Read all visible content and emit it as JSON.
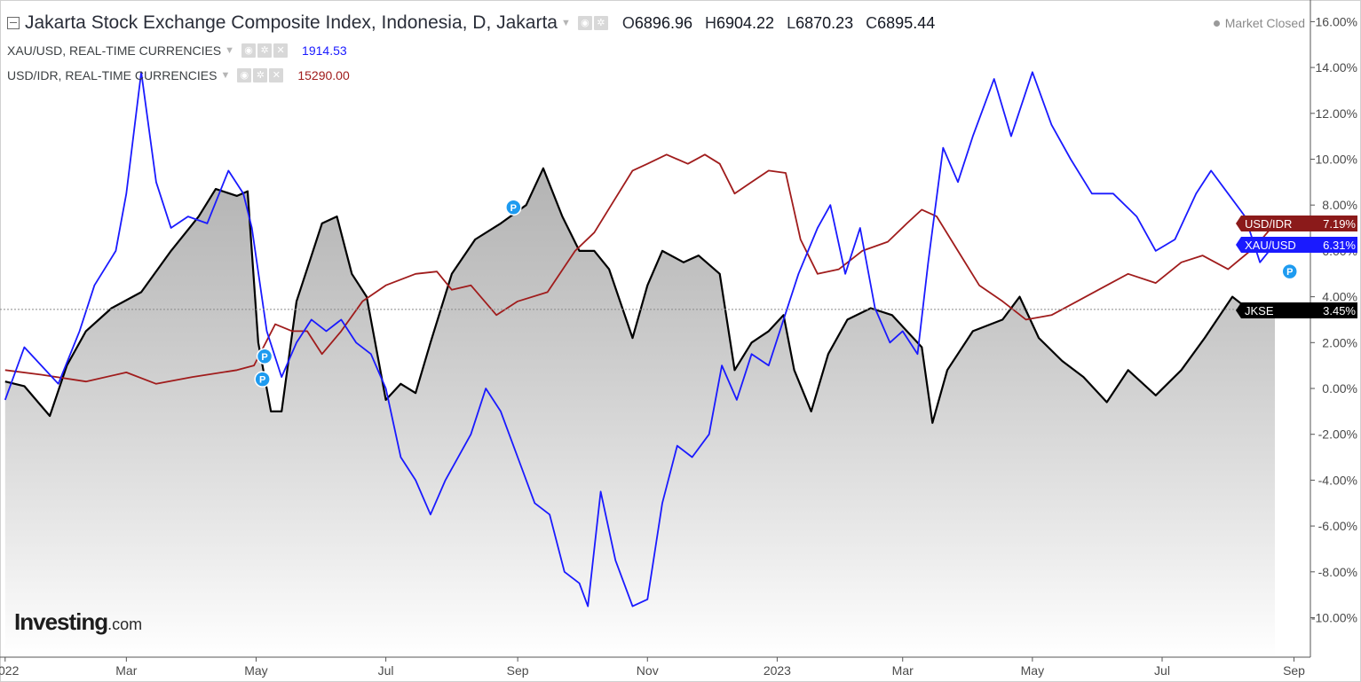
{
  "header": {
    "title": "Jakarta Stock Exchange Composite Index, Indonesia, D, Jakarta",
    "open_key": "O",
    "open": "6896.96",
    "high_key": "H",
    "high": "6904.22",
    "low_key": "L",
    "low": "6870.23",
    "close_key": "C",
    "close": "6895.44",
    "market_status": "Market Closed",
    "overlays": [
      {
        "name": "XAU/USD, REAL-TIME CURRENCIES",
        "value": "1914.53",
        "color": "#1a1aff"
      },
      {
        "name": "USD/IDR, REAL-TIME CURRENCIES",
        "value": "15290.00",
        "color": "#a01c1c"
      }
    ]
  },
  "logo": {
    "brand": "Investing",
    "suffix": ".com"
  },
  "chart_data": {
    "type": "line",
    "y_unit": "% change",
    "ylim": [
      -11.5,
      16.5
    ],
    "y_ticks": [
      "16.00%",
      "14.00%",
      "12.00%",
      "10.00%",
      "8.00%",
      "6.00%",
      "4.00%",
      "2.00%",
      "0.00%",
      "-2.00%",
      "-4.00%",
      "-6.00%",
      "-8.00%",
      "-10.00%"
    ],
    "y_tick_values": [
      16,
      14,
      12,
      10,
      8,
      6,
      4,
      2,
      0,
      -2,
      -4,
      -6,
      -8,
      -10
    ],
    "x_range": [
      "2022-01-01",
      "2023-09-30"
    ],
    "x_ticks": [
      "2022",
      "Mar",
      "May",
      "Jul",
      "Sep",
      "Nov",
      "2023",
      "Mar",
      "May",
      "Jul",
      "Sep"
    ],
    "x_tick_dates": [
      "2022-01-03",
      "2022-03-01",
      "2022-05-01",
      "2022-07-01",
      "2022-09-01",
      "2022-11-01",
      "2023-01-01",
      "2023-03-01",
      "2023-05-01",
      "2023-07-01",
      "2023-09-01"
    ],
    "grid": false,
    "reference_line": 3.45,
    "series": [
      {
        "name": "JKSE",
        "color": "#000000",
        "fill": true,
        "last_label": "3.45%",
        "label_bg": "#000000",
        "points": [
          [
            "2022-01-03",
            0.3
          ],
          [
            "2022-01-12",
            0.1
          ],
          [
            "2022-01-24",
            -1.2
          ],
          [
            "2022-02-01",
            1.0
          ],
          [
            "2022-02-10",
            2.5
          ],
          [
            "2022-02-22",
            3.5
          ],
          [
            "2022-03-08",
            4.2
          ],
          [
            "2022-03-22",
            6.0
          ],
          [
            "2022-04-04",
            7.5
          ],
          [
            "2022-04-12",
            8.7
          ],
          [
            "2022-04-22",
            8.4
          ],
          [
            "2022-04-27",
            8.6
          ],
          [
            "2022-05-02",
            2.0
          ],
          [
            "2022-05-08",
            -1.0
          ],
          [
            "2022-05-13",
            -1.0
          ],
          [
            "2022-05-20",
            3.8
          ],
          [
            "2022-05-26",
            5.5
          ],
          [
            "2022-06-01",
            7.2
          ],
          [
            "2022-06-08",
            7.5
          ],
          [
            "2022-06-15",
            5.0
          ],
          [
            "2022-06-22",
            4.0
          ],
          [
            "2022-07-01",
            -0.5
          ],
          [
            "2022-07-08",
            0.2
          ],
          [
            "2022-07-15",
            -0.2
          ],
          [
            "2022-07-22",
            2.0
          ],
          [
            "2022-08-01",
            5.0
          ],
          [
            "2022-08-12",
            6.5
          ],
          [
            "2022-08-24",
            7.2
          ],
          [
            "2022-09-05",
            8.0
          ],
          [
            "2022-09-13",
            9.6
          ],
          [
            "2022-09-22",
            7.5
          ],
          [
            "2022-09-30",
            6.0
          ],
          [
            "2022-10-07",
            6.0
          ],
          [
            "2022-10-14",
            5.2
          ],
          [
            "2022-10-25",
            2.2
          ],
          [
            "2022-11-01",
            4.5
          ],
          [
            "2022-11-08",
            6.0
          ],
          [
            "2022-11-18",
            5.5
          ],
          [
            "2022-11-25",
            5.8
          ],
          [
            "2022-12-05",
            5.0
          ],
          [
            "2022-12-12",
            0.8
          ],
          [
            "2022-12-20",
            2.0
          ],
          [
            "2022-12-28",
            2.5
          ],
          [
            "2023-01-04",
            3.2
          ],
          [
            "2023-01-09",
            0.8
          ],
          [
            "2023-01-17",
            -1.0
          ],
          [
            "2023-01-25",
            1.5
          ],
          [
            "2023-02-03",
            3.0
          ],
          [
            "2023-02-14",
            3.5
          ],
          [
            "2023-02-24",
            3.2
          ],
          [
            "2023-03-03",
            2.5
          ],
          [
            "2023-03-10",
            1.8
          ],
          [
            "2023-03-15",
            -1.5
          ],
          [
            "2023-03-22",
            0.8
          ],
          [
            "2023-04-03",
            2.5
          ],
          [
            "2023-04-17",
            3.0
          ],
          [
            "2023-04-25",
            4.0
          ],
          [
            "2023-05-04",
            2.2
          ],
          [
            "2023-05-15",
            1.2
          ],
          [
            "2023-05-25",
            0.5
          ],
          [
            "2023-06-05",
            -0.6
          ],
          [
            "2023-06-15",
            0.8
          ],
          [
            "2023-06-28",
            -0.3
          ],
          [
            "2023-07-10",
            0.8
          ],
          [
            "2023-07-21",
            2.2
          ],
          [
            "2023-08-03",
            4.0
          ],
          [
            "2023-08-14",
            3.2
          ],
          [
            "2023-08-23",
            3.45
          ]
        ]
      },
      {
        "name": "USD/IDR",
        "color": "#a01c1c",
        "fill": false,
        "last_label": "7.19%",
        "label_bg": "#8b1a1a",
        "points": [
          [
            "2022-01-03",
            0.8
          ],
          [
            "2022-01-20",
            0.6
          ],
          [
            "2022-02-10",
            0.3
          ],
          [
            "2022-03-01",
            0.7
          ],
          [
            "2022-03-15",
            0.2
          ],
          [
            "2022-04-01",
            0.5
          ],
          [
            "2022-04-22",
            0.8
          ],
          [
            "2022-04-30",
            1.0
          ],
          [
            "2022-05-10",
            2.8
          ],
          [
            "2022-05-18",
            2.5
          ],
          [
            "2022-05-25",
            2.5
          ],
          [
            "2022-06-01",
            1.5
          ],
          [
            "2022-06-10",
            2.5
          ],
          [
            "2022-06-20",
            3.8
          ],
          [
            "2022-07-01",
            4.5
          ],
          [
            "2022-07-15",
            5.0
          ],
          [
            "2022-07-25",
            5.1
          ],
          [
            "2022-08-01",
            4.3
          ],
          [
            "2022-08-10",
            4.5
          ],
          [
            "2022-08-22",
            3.2
          ],
          [
            "2022-09-01",
            3.8
          ],
          [
            "2022-09-15",
            4.2
          ],
          [
            "2022-09-28",
            6.0
          ],
          [
            "2022-10-07",
            6.8
          ],
          [
            "2022-10-15",
            8.0
          ],
          [
            "2022-10-25",
            9.5
          ],
          [
            "2022-11-01",
            9.8
          ],
          [
            "2022-11-10",
            10.2
          ],
          [
            "2022-11-20",
            9.8
          ],
          [
            "2022-11-28",
            10.2
          ],
          [
            "2022-12-05",
            9.8
          ],
          [
            "2022-12-12",
            8.5
          ],
          [
            "2022-12-20",
            9.0
          ],
          [
            "2022-12-28",
            9.5
          ],
          [
            "2023-01-05",
            9.4
          ],
          [
            "2023-01-12",
            6.5
          ],
          [
            "2023-01-20",
            5.0
          ],
          [
            "2023-01-30",
            5.2
          ],
          [
            "2023-02-10",
            6.0
          ],
          [
            "2023-02-22",
            6.4
          ],
          [
            "2023-03-03",
            7.2
          ],
          [
            "2023-03-10",
            7.8
          ],
          [
            "2023-03-17",
            7.5
          ],
          [
            "2023-03-27",
            6.0
          ],
          [
            "2023-04-06",
            4.5
          ],
          [
            "2023-04-17",
            3.8
          ],
          [
            "2023-04-28",
            3.0
          ],
          [
            "2023-05-10",
            3.2
          ],
          [
            "2023-05-22",
            3.8
          ],
          [
            "2023-06-05",
            4.5
          ],
          [
            "2023-06-15",
            5.0
          ],
          [
            "2023-06-28",
            4.6
          ],
          [
            "2023-07-10",
            5.5
          ],
          [
            "2023-07-20",
            5.8
          ],
          [
            "2023-08-01",
            5.2
          ],
          [
            "2023-08-14",
            6.2
          ],
          [
            "2023-08-23",
            7.19
          ]
        ]
      },
      {
        "name": "XAU/USD",
        "color": "#1a1aff",
        "fill": false,
        "last_label": "6.31%",
        "label_bg": "#1a1aff",
        "points": [
          [
            "2022-01-03",
            -0.5
          ],
          [
            "2022-01-12",
            1.8
          ],
          [
            "2022-01-20",
            1.0
          ],
          [
            "2022-01-28",
            0.2
          ],
          [
            "2022-02-07",
            2.5
          ],
          [
            "2022-02-14",
            4.5
          ],
          [
            "2022-02-24",
            6.0
          ],
          [
            "2022-03-01",
            8.5
          ],
          [
            "2022-03-08",
            13.8
          ],
          [
            "2022-03-15",
            9.0
          ],
          [
            "2022-03-22",
            7.0
          ],
          [
            "2022-03-30",
            7.5
          ],
          [
            "2022-04-08",
            7.2
          ],
          [
            "2022-04-18",
            9.5
          ],
          [
            "2022-04-25",
            8.5
          ],
          [
            "2022-04-29",
            7.0
          ],
          [
            "2022-05-06",
            2.5
          ],
          [
            "2022-05-13",
            0.5
          ],
          [
            "2022-05-20",
            2.0
          ],
          [
            "2022-05-27",
            3.0
          ],
          [
            "2022-06-03",
            2.5
          ],
          [
            "2022-06-10",
            3.0
          ],
          [
            "2022-06-17",
            2.0
          ],
          [
            "2022-06-24",
            1.5
          ],
          [
            "2022-07-01",
            0.0
          ],
          [
            "2022-07-08",
            -3.0
          ],
          [
            "2022-07-15",
            -4.0
          ],
          [
            "2022-07-22",
            -5.5
          ],
          [
            "2022-07-29",
            -4.0
          ],
          [
            "2022-08-10",
            -2.0
          ],
          [
            "2022-08-17",
            0.0
          ],
          [
            "2022-08-24",
            -1.0
          ],
          [
            "2022-09-01",
            -3.0
          ],
          [
            "2022-09-09",
            -5.0
          ],
          [
            "2022-09-16",
            -5.5
          ],
          [
            "2022-09-23",
            -8.0
          ],
          [
            "2022-09-30",
            -8.5
          ],
          [
            "2022-10-04",
            -9.5
          ],
          [
            "2022-10-10",
            -4.5
          ],
          [
            "2022-10-17",
            -7.5
          ],
          [
            "2022-10-25",
            -9.5
          ],
          [
            "2022-11-01",
            -9.2
          ],
          [
            "2022-11-08",
            -5.0
          ],
          [
            "2022-11-15",
            -2.5
          ],
          [
            "2022-11-22",
            -3.0
          ],
          [
            "2022-11-30",
            -2.0
          ],
          [
            "2022-12-06",
            1.0
          ],
          [
            "2022-12-13",
            -0.5
          ],
          [
            "2022-12-20",
            1.5
          ],
          [
            "2022-12-28",
            1.0
          ],
          [
            "2023-01-04",
            3.0
          ],
          [
            "2023-01-11",
            5.0
          ],
          [
            "2023-01-20",
            7.0
          ],
          [
            "2023-01-26",
            8.0
          ],
          [
            "2023-02-02",
            5.0
          ],
          [
            "2023-02-09",
            7.0
          ],
          [
            "2023-02-16",
            3.5
          ],
          [
            "2023-02-23",
            2.0
          ],
          [
            "2023-03-01",
            2.5
          ],
          [
            "2023-03-08",
            1.5
          ],
          [
            "2023-03-13",
            5.5
          ],
          [
            "2023-03-20",
            10.5
          ],
          [
            "2023-03-27",
            9.0
          ],
          [
            "2023-04-03",
            11.0
          ],
          [
            "2023-04-13",
            13.5
          ],
          [
            "2023-04-21",
            11.0
          ],
          [
            "2023-05-01",
            13.8
          ],
          [
            "2023-05-10",
            11.5
          ],
          [
            "2023-05-19",
            10.0
          ],
          [
            "2023-05-29",
            8.5
          ],
          [
            "2023-06-08",
            8.5
          ],
          [
            "2023-06-19",
            7.5
          ],
          [
            "2023-06-28",
            6.0
          ],
          [
            "2023-07-07",
            6.5
          ],
          [
            "2023-07-17",
            8.5
          ],
          [
            "2023-07-24",
            9.5
          ],
          [
            "2023-08-01",
            8.5
          ],
          [
            "2023-08-09",
            7.5
          ],
          [
            "2023-08-16",
            5.5
          ],
          [
            "2023-08-23",
            6.31
          ]
        ]
      }
    ],
    "annotations": [
      {
        "label": "P",
        "date": "2022-05-04",
        "value": 0.4
      },
      {
        "label": "P",
        "date": "2022-05-05",
        "value": 1.4
      },
      {
        "label": "P",
        "date": "2022-08-30",
        "value": 7.9
      },
      {
        "label": "P",
        "date": "2023-08-30",
        "value": 5.1
      }
    ]
  }
}
